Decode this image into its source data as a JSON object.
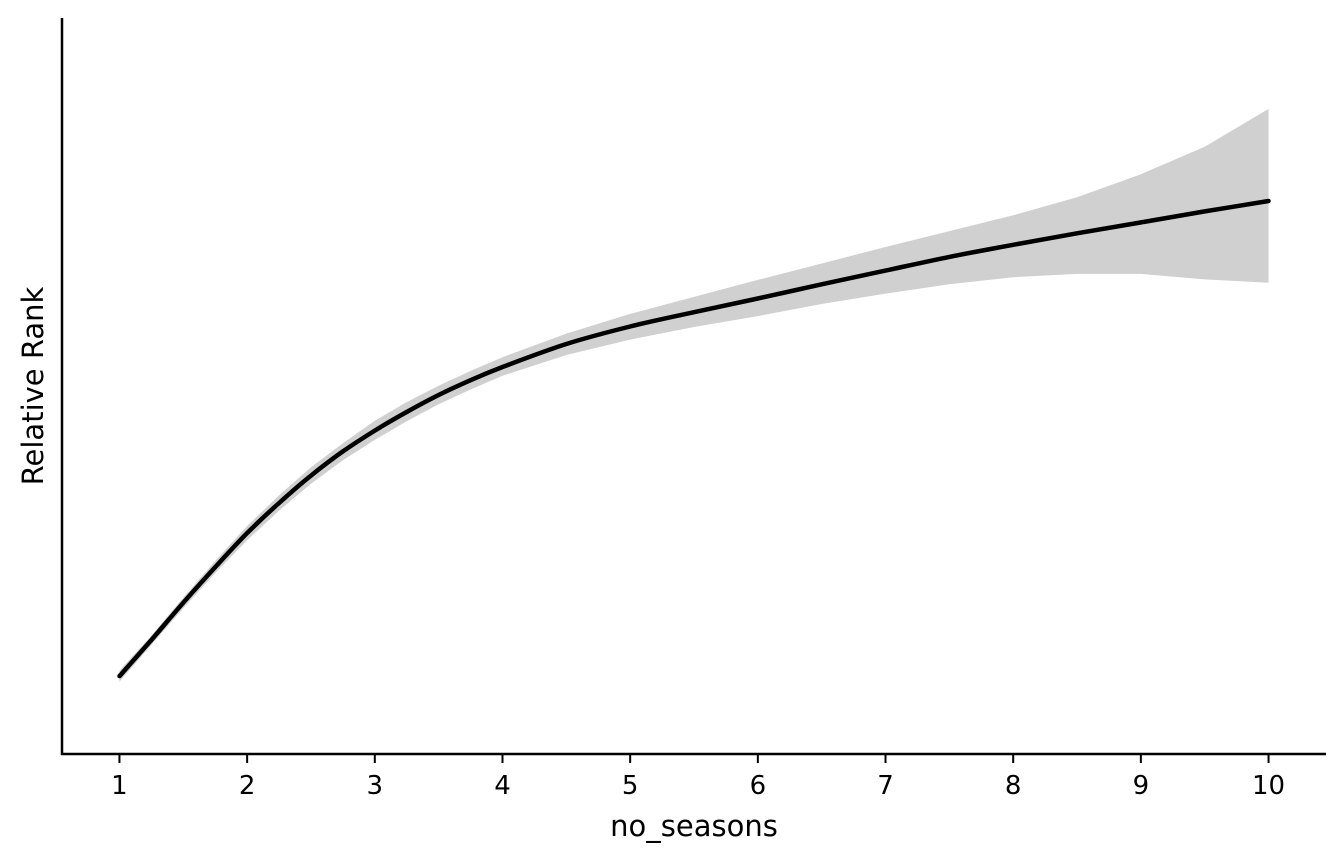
{
  "chart_data": {
    "type": "line",
    "xlabel": "no_seasons",
    "ylabel": "Relative Rank",
    "xlim": [
      0.55,
      10.45
    ],
    "ylim": [
      0,
      100
    ],
    "x_ticks": [
      1,
      2,
      3,
      4,
      5,
      6,
      7,
      8,
      9,
      10
    ],
    "y_ticks": [],
    "grid": false,
    "legend": "none",
    "colors": {
      "line": "#000000",
      "band": "#d0d0d0",
      "axis": "#000000"
    },
    "series": [
      {
        "x": [
          1.0,
          1.25,
          1.5,
          1.75,
          2.0,
          2.25,
          2.5,
          2.75,
          3.0,
          3.25,
          3.5,
          3.75,
          4.0,
          4.5,
          5.0,
          5.5,
          6.0,
          6.5,
          7.0,
          7.5,
          8.0,
          8.5,
          9.0,
          9.5,
          10.0
        ],
        "y": [
          6.0,
          12.6,
          19.4,
          25.9,
          32.1,
          37.6,
          42.6,
          47.0,
          50.8,
          54.2,
          57.3,
          60.0,
          62.4,
          66.6,
          69.8,
          72.4,
          74.9,
          77.5,
          80.0,
          82.5,
          84.7,
          86.8,
          88.8,
          90.8,
          92.7
        ],
        "lower": [
          5.0,
          11.7,
          18.4,
          24.8,
          30.8,
          36.2,
          41.1,
          45.4,
          49.1,
          52.5,
          55.6,
          58.3,
          60.8,
          64.6,
          67.4,
          69.7,
          71.7,
          73.9,
          75.8,
          77.5,
          78.8,
          79.4,
          79.4,
          78.4,
          77.8
        ],
        "upper": [
          7.0,
          13.4,
          20.3,
          27.0,
          33.4,
          39.0,
          44.1,
          48.5,
          52.6,
          56.0,
          59.0,
          61.7,
          64.2,
          68.5,
          72.1,
          75.2,
          78.3,
          81.3,
          84.3,
          87.2,
          90.1,
          93.4,
          97.6,
          102.6,
          109.5
        ]
      }
    ]
  }
}
